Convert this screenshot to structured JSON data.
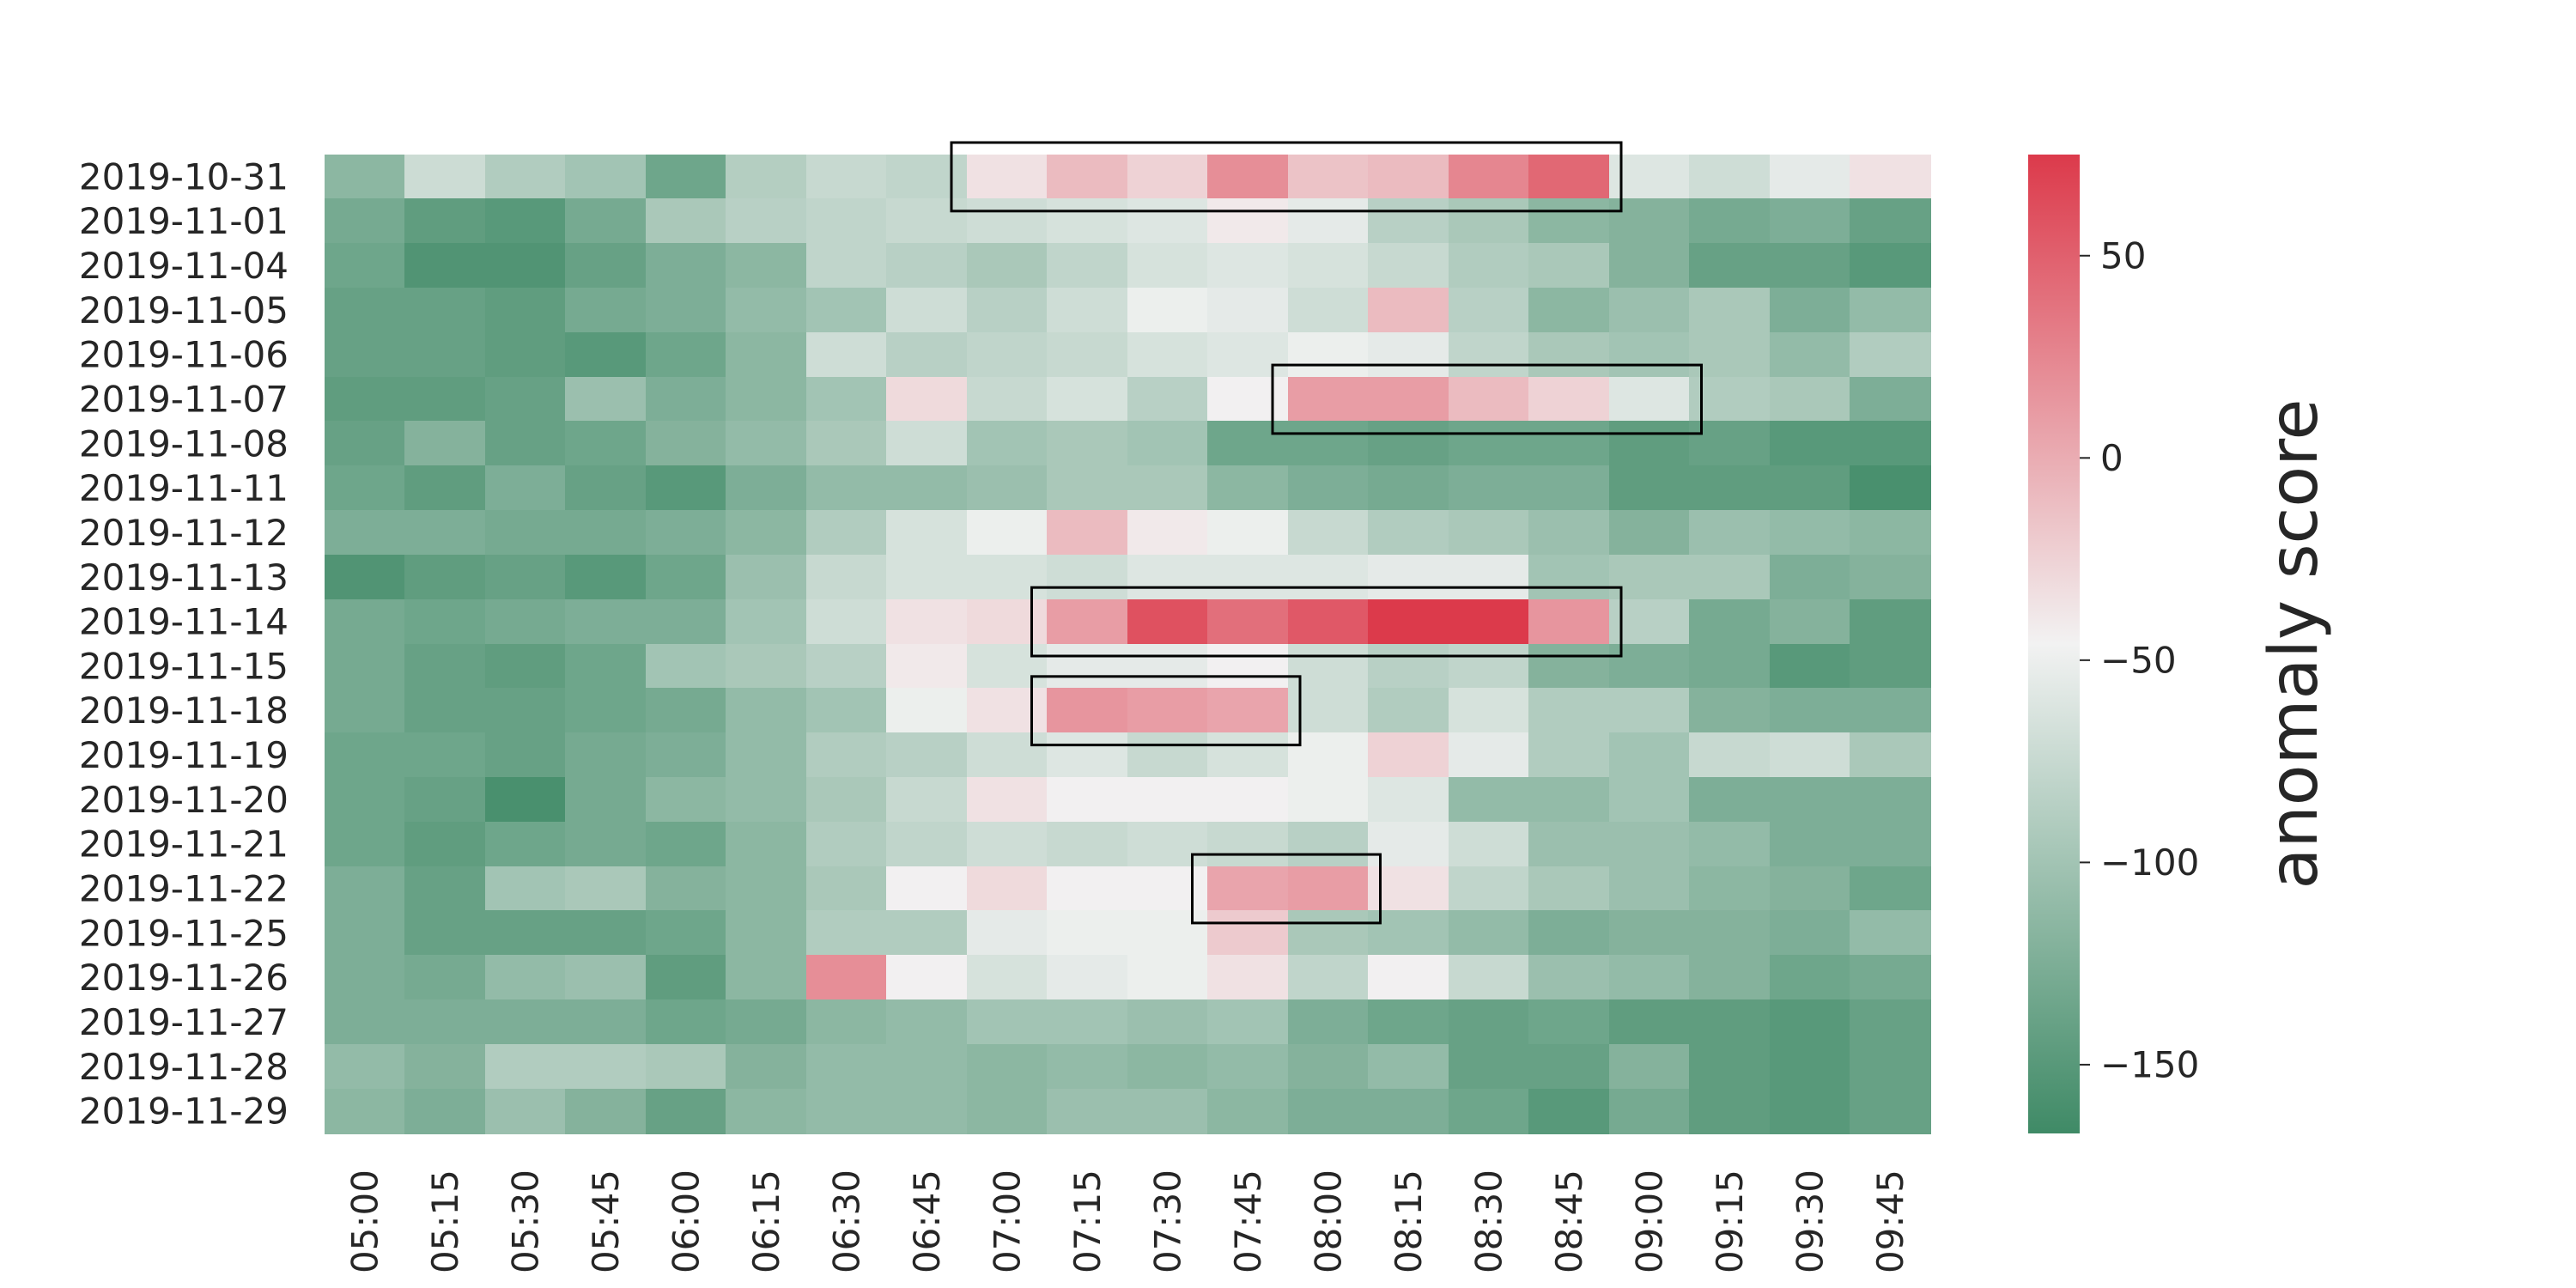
{
  "chart_data": {
    "type": "heatmap",
    "title": "",
    "xlabel": "",
    "ylabel": "",
    "x_categories": [
      "05:00",
      "05:15",
      "05:30",
      "05:45",
      "06:00",
      "06:15",
      "06:30",
      "06:45",
      "07:00",
      "07:15",
      "07:30",
      "07:45",
      "08:00",
      "08:15",
      "08:30",
      "08:45",
      "09:00",
      "09:15",
      "09:30",
      "09:45"
    ],
    "y_categories": [
      "2019-10-31",
      "2019-11-01",
      "2019-11-04",
      "2019-11-05",
      "2019-11-06",
      "2019-11-07",
      "2019-11-08",
      "2019-11-11",
      "2019-11-12",
      "2019-11-13",
      "2019-11-14",
      "2019-11-15",
      "2019-11-18",
      "2019-11-19",
      "2019-11-20",
      "2019-11-21",
      "2019-11-22",
      "2019-11-25",
      "2019-11-26",
      "2019-11-27",
      "2019-11-28",
      "2019-11-29"
    ],
    "values": [
      [
        -115,
        -72,
        -90,
        -100,
        -135,
        -88,
        -75,
        -80,
        -35,
        -10,
        -25,
        20,
        -15,
        -10,
        25,
        45,
        -60,
        -70,
        -55,
        -35
      ],
      [
        -130,
        -145,
        -150,
        -130,
        -95,
        -85,
        -80,
        -75,
        -70,
        -65,
        -60,
        -40,
        -55,
        -85,
        -95,
        -115,
        -120,
        -130,
        -125,
        -140
      ],
      [
        -135,
        -155,
        -155,
        -140,
        -125,
        -115,
        -80,
        -85,
        -95,
        -80,
        -65,
        -60,
        -65,
        -75,
        -90,
        -95,
        -120,
        -140,
        -140,
        -150
      ],
      [
        -140,
        -140,
        -145,
        -130,
        -125,
        -110,
        -100,
        -70,
        -85,
        -70,
        -50,
        -55,
        -70,
        -10,
        -85,
        -115,
        -105,
        -95,
        -125,
        -110
      ],
      [
        -140,
        -140,
        -145,
        -150,
        -135,
        -115,
        -70,
        -85,
        -80,
        -75,
        -65,
        -60,
        -50,
        -55,
        -80,
        -95,
        -100,
        -95,
        -110,
        -90
      ],
      [
        -145,
        -145,
        -140,
        -105,
        -125,
        -115,
        -100,
        -30,
        -75,
        -65,
        -85,
        -45,
        10,
        10,
        -10,
        -25,
        -60,
        -90,
        -95,
        -125
      ],
      [
        -140,
        -120,
        -140,
        -135,
        -120,
        -110,
        -95,
        -70,
        -100,
        -95,
        -100,
        -135,
        -135,
        -140,
        -135,
        -135,
        -145,
        -140,
        -150,
        -150
      ],
      [
        -135,
        -145,
        -125,
        -140,
        -150,
        -125,
        -110,
        -110,
        -105,
        -95,
        -95,
        -115,
        -125,
        -130,
        -125,
        -125,
        -145,
        -145,
        -145,
        -160
      ],
      [
        -125,
        -125,
        -130,
        -130,
        -125,
        -115,
        -90,
        -65,
        -50,
        -10,
        -40,
        -50,
        -75,
        -90,
        -95,
        -105,
        -120,
        -105,
        -110,
        -115
      ],
      [
        -155,
        -145,
        -140,
        -150,
        -135,
        -105,
        -75,
        -65,
        -65,
        -70,
        -60,
        -60,
        -60,
        -55,
        -55,
        -100,
        -95,
        -95,
        -125,
        -120
      ],
      [
        -130,
        -135,
        -130,
        -125,
        -125,
        -100,
        -70,
        -35,
        -30,
        10,
        60,
        40,
        55,
        75,
        75,
        15,
        -85,
        -130,
        -120,
        -145
      ],
      [
        -130,
        -140,
        -145,
        -135,
        -100,
        -95,
        -85,
        -40,
        -65,
        -55,
        -55,
        -45,
        -70,
        -85,
        -80,
        -120,
        -125,
        -130,
        -150,
        -145
      ],
      [
        -130,
        -140,
        -140,
        -135,
        -130,
        -110,
        -100,
        -50,
        -35,
        15,
        10,
        5,
        -70,
        -90,
        -65,
        -90,
        -90,
        -120,
        -125,
        -125
      ],
      [
        -135,
        -135,
        -140,
        -130,
        -125,
        -110,
        -90,
        -85,
        -70,
        -60,
        -75,
        -65,
        -50,
        -25,
        -55,
        -90,
        -100,
        -75,
        -70,
        -95
      ],
      [
        -135,
        -140,
        -160,
        -130,
        -115,
        -110,
        -95,
        -75,
        -35,
        -45,
        -45,
        -45,
        -50,
        -60,
        -110,
        -110,
        -100,
        -125,
        -125,
        -125
      ],
      [
        -135,
        -145,
        -135,
        -130,
        -135,
        -115,
        -90,
        -80,
        -70,
        -75,
        -70,
        -75,
        -85,
        -55,
        -70,
        -105,
        -105,
        -110,
        -125,
        -125
      ],
      [
        -125,
        -140,
        -100,
        -95,
        -120,
        -115,
        -95,
        -45,
        -30,
        -45,
        -45,
        5,
        10,
        -35,
        -80,
        -95,
        -105,
        -115,
        -120,
        -135
      ],
      [
        -125,
        -140,
        -140,
        -140,
        -135,
        -115,
        -90,
        -90,
        -55,
        -50,
        -50,
        -20,
        -95,
        -100,
        -110,
        -125,
        -120,
        -120,
        -125,
        -110
      ],
      [
        -125,
        -130,
        -110,
        -105,
        -145,
        -115,
        20,
        -45,
        -65,
        -55,
        -50,
        -35,
        -80,
        -45,
        -75,
        -105,
        -110,
        -120,
        -135,
        -130
      ],
      [
        -125,
        -125,
        -125,
        -125,
        -135,
        -130,
        -115,
        -110,
        -100,
        -100,
        -105,
        -100,
        -125,
        -135,
        -140,
        -135,
        -145,
        -145,
        -150,
        -140
      ],
      [
        -110,
        -120,
        -90,
        -90,
        -95,
        -120,
        -110,
        -110,
        -115,
        -110,
        -115,
        -110,
        -120,
        -110,
        -140,
        -140,
        -120,
        -145,
        -150,
        -140
      ],
      [
        -115,
        -125,
        -105,
        -120,
        -140,
        -115,
        -110,
        -110,
        -115,
        -105,
        -105,
        -115,
        -125,
        -125,
        -135,
        -150,
        -130,
        -145,
        -150,
        -140
      ]
    ],
    "colorbar": {
      "label": "anomaly score",
      "ticks": [
        50,
        0,
        -50,
        -100,
        -150
      ],
      "tick_labels": [
        "50",
        "0",
        "−50",
        "−100",
        "−150"
      ],
      "range": [
        -167,
        75
      ],
      "low_color": "#3f8a66",
      "mid_color": "#f2f2f2",
      "high_color": "#dc3a4b"
    },
    "highlight_boxes": [
      {
        "row": "2019-10-31",
        "from": "07:00",
        "to": "08:45"
      },
      {
        "row": "2019-11-07",
        "from": "08:00",
        "to": "09:00"
      },
      {
        "row": "2019-11-14",
        "from": "07:15",
        "to": "08:45"
      },
      {
        "row": "2019-11-18",
        "from": "07:15",
        "to": "07:45"
      },
      {
        "row": "2019-11-22",
        "from": "07:45",
        "to": "08:00"
      }
    ],
    "grid": false,
    "legend": "colorbar-right"
  }
}
